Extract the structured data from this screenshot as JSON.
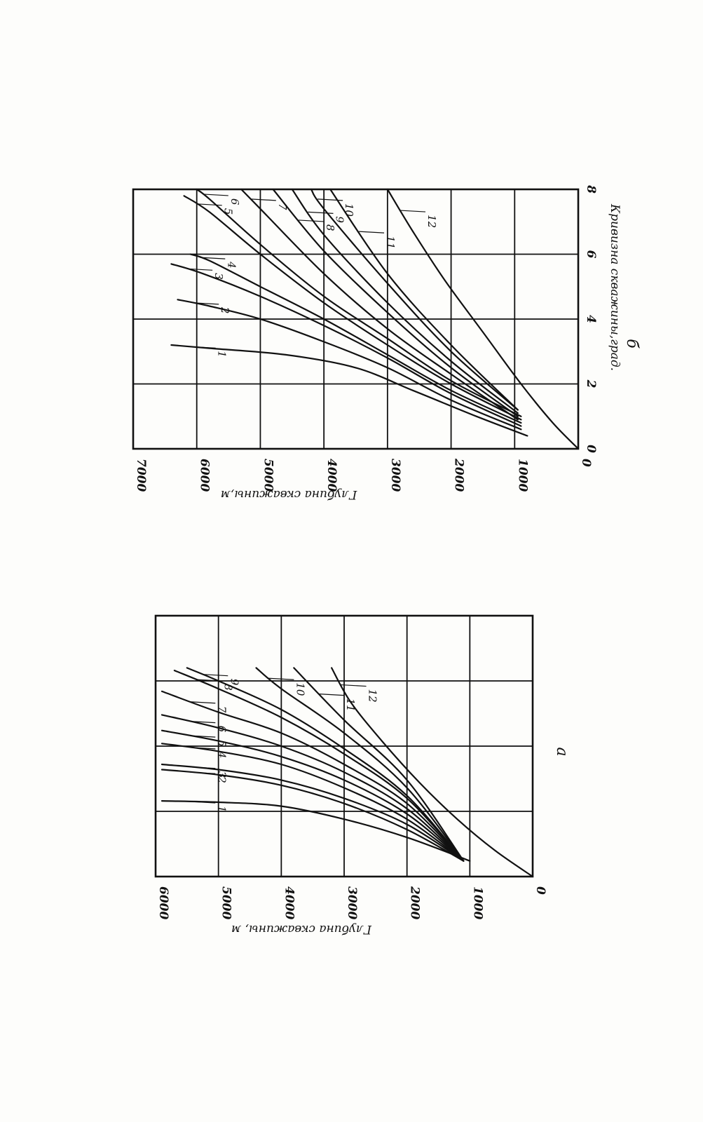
{
  "chart_data": [
    {
      "type": "line",
      "panel_label": "а",
      "title": "",
      "ylabel": "Глубина скважины, м",
      "xlabel": "",
      "ylim": [
        0,
        6000
      ],
      "xlim": [
        0,
        10
      ],
      "y_ticks": [
        "0",
        "1000",
        "2000",
        "3000",
        "4000",
        "5000",
        "6000"
      ],
      "x_ticks": [],
      "grid": true,
      "series": [
        {
          "name": "1",
          "points": [
            [
              0.6,
              1000
            ],
            [
              1.5,
              2000
            ],
            [
              2.2,
              3000
            ],
            [
              2.7,
              4000
            ],
            [
              2.85,
              5000
            ],
            [
              2.9,
              5900
            ]
          ]
        },
        {
          "name": "2",
          "points": [
            [
              0.6,
              1100
            ],
            [
              1.8,
              2000
            ],
            [
              2.8,
              3000
            ],
            [
              3.5,
              4000
            ],
            [
              3.9,
              5000
            ],
            [
              4.1,
              5900
            ]
          ]
        },
        {
          "name": "3",
          "points": [
            [
              0.6,
              1100
            ],
            [
              2.0,
              2000
            ],
            [
              3.0,
              3000
            ],
            [
              3.7,
              4000
            ],
            [
              4.1,
              5000
            ],
            [
              4.3,
              5900
            ]
          ]
        },
        {
          "name": "4",
          "points": [
            [
              0.6,
              1100
            ],
            [
              2.2,
              2000
            ],
            [
              3.4,
              3000
            ],
            [
              4.3,
              4000
            ],
            [
              4.8,
              5000
            ],
            [
              5.1,
              5900
            ]
          ]
        },
        {
          "name": "5",
          "points": [
            [
              0.6,
              1100
            ],
            [
              2.4,
              2000
            ],
            [
              3.7,
              3000
            ],
            [
              4.6,
              4000
            ],
            [
              5.2,
              5000
            ],
            [
              5.6,
              5900
            ]
          ]
        },
        {
          "name": "6",
          "points": [
            [
              0.6,
              1100
            ],
            [
              2.6,
              2000
            ],
            [
              4.0,
              3000
            ],
            [
              5.0,
              4000
            ],
            [
              5.7,
              5000
            ],
            [
              6.2,
              5900
            ]
          ]
        },
        {
          "name": "7",
          "points": [
            [
              0.6,
              1100
            ],
            [
              2.8,
              2000
            ],
            [
              4.3,
              3000
            ],
            [
              5.5,
              4000
            ],
            [
              6.3,
              5000
            ],
            [
              7.1,
              5900
            ]
          ]
        },
        {
          "name": "8",
          "points": [
            [
              0.6,
              1100
            ],
            [
              3.0,
              2000
            ],
            [
              4.7,
              3000
            ],
            [
              6.1,
              4000
            ],
            [
              7.2,
              5000
            ],
            [
              7.9,
              5700
            ]
          ]
        },
        {
          "name": "9",
          "points": [
            [
              0.6,
              1100
            ],
            [
              3.1,
              2000
            ],
            [
              4.9,
              3000
            ],
            [
              6.4,
              4000
            ],
            [
              7.5,
              5000
            ],
            [
              8.0,
              5500
            ]
          ]
        },
        {
          "name": "10",
          "points": [
            [
              0.6,
              1100
            ],
            [
              3.4,
              2000
            ],
            [
              5.5,
              3000
            ],
            [
              7.2,
              4000
            ],
            [
              8.0,
              4400
            ]
          ]
        },
        {
          "name": "11",
          "points": [
            [
              0.6,
              1100
            ],
            [
              3.7,
              2000
            ],
            [
              6.0,
              3000
            ],
            [
              8.0,
              3800
            ]
          ]
        },
        {
          "name": "12",
          "points": [
            [
              0.0,
              0
            ],
            [
              1.0,
              600
            ],
            [
              2.2,
              1200
            ],
            [
              3.6,
              1800
            ],
            [
              5.2,
              2400
            ],
            [
              6.7,
              2900
            ],
            [
              8.0,
              3200
            ]
          ]
        }
      ]
    },
    {
      "type": "line",
      "panel_label": "б",
      "title": "",
      "ylabel": "Глубина скважины,м",
      "xlabel": "Кривизна скважины,град.",
      "ylim": [
        0,
        7000
      ],
      "xlim": [
        0,
        8
      ],
      "y_ticks": [
        "0",
        "1000",
        "2000",
        "3000",
        "4000",
        "5000",
        "6000",
        "7000"
      ],
      "x_ticks": [
        "0",
        "2",
        "4",
        "6",
        "8"
      ],
      "grid": true,
      "series": [
        {
          "name": "1",
          "points": [
            [
              0.4,
              800
            ],
            [
              1.0,
              1600
            ],
            [
              1.8,
              2600
            ],
            [
              2.5,
              3500
            ],
            [
              2.9,
              4600
            ],
            [
              3.1,
              5800
            ],
            [
              3.2,
              6400
            ]
          ]
        },
        {
          "name": "2",
          "points": [
            [
              0.6,
              900
            ],
            [
              1.5,
              2000
            ],
            [
              2.5,
              3000
            ],
            [
              3.3,
              4000
            ],
            [
              4.0,
              5000
            ],
            [
              4.4,
              5800
            ],
            [
              4.6,
              6300
            ]
          ]
        },
        {
          "name": "3",
          "points": [
            [
              0.7,
              900
            ],
            [
              1.7,
              2000
            ],
            [
              2.8,
              3000
            ],
            [
              3.8,
              4000
            ],
            [
              4.7,
              5000
            ],
            [
              5.4,
              5900
            ],
            [
              5.7,
              6400
            ]
          ]
        },
        {
          "name": "4",
          "points": [
            [
              0.8,
              900
            ],
            [
              1.8,
              2000
            ],
            [
              2.9,
              3000
            ],
            [
              4.0,
              4000
            ],
            [
              5.0,
              5000
            ],
            [
              5.8,
              5800
            ],
            [
              6.0,
              6100
            ]
          ]
        },
        {
          "name": "5",
          "points": [
            [
              0.9,
              900
            ],
            [
              2.0,
              2000
            ],
            [
              3.2,
              3000
            ],
            [
              4.5,
              4000
            ],
            [
              6.0,
              5000
            ],
            [
              7.3,
              5800
            ],
            [
              7.8,
              6200
            ]
          ]
        },
        {
          "name": "6",
          "points": [
            [
              1.0,
              900
            ],
            [
              2.1,
              2000
            ],
            [
              3.4,
              3000
            ],
            [
              4.7,
              4000
            ],
            [
              6.3,
              5000
            ],
            [
              7.7,
              5800
            ],
            [
              8.0,
              6000
            ]
          ]
        },
        {
          "name": "7",
          "points": [
            [
              0.9,
              950
            ],
            [
              2.3,
              2000
            ],
            [
              3.7,
              3000
            ],
            [
              5.4,
              4000
            ],
            [
              7.4,
              5000
            ],
            [
              8.0,
              5300
            ]
          ]
        },
        {
          "name": "8",
          "points": [
            [
              1.0,
              950
            ],
            [
              2.5,
              2000
            ],
            [
              4.2,
              3000
            ],
            [
              6.1,
              4000
            ],
            [
              8.0,
              4800
            ]
          ]
        },
        {
          "name": "9",
          "points": [
            [
              1.1,
              950
            ],
            [
              2.7,
              2000
            ],
            [
              4.5,
              3000
            ],
            [
              6.6,
              4000
            ],
            [
              8.0,
              4500
            ]
          ]
        },
        {
          "name": "10",
          "points": [
            [
              1.2,
              950
            ],
            [
              3.0,
              2000
            ],
            [
              5.1,
              3000
            ],
            [
              7.4,
              4000
            ],
            [
              8.0,
              4200
            ]
          ]
        },
        {
          "name": "11",
          "points": [
            [
              1.2,
              950
            ],
            [
              3.2,
              2000
            ],
            [
              5.4,
              3000
            ],
            [
              8.0,
              3900
            ]
          ]
        },
        {
          "name": "12",
          "points": [
            [
              0.0,
              0
            ],
            [
              0.8,
              400
            ],
            [
              2.0,
              900
            ],
            [
              3.6,
              1500
            ],
            [
              5.2,
              2100
            ],
            [
              6.7,
              2600
            ],
            [
              8.0,
              3000
            ]
          ]
        }
      ],
      "labels_shown": [
        "1",
        "2",
        "3",
        "4",
        "5",
        "6",
        "7",
        "8",
        "9",
        "10",
        "11",
        "12"
      ]
    }
  ]
}
